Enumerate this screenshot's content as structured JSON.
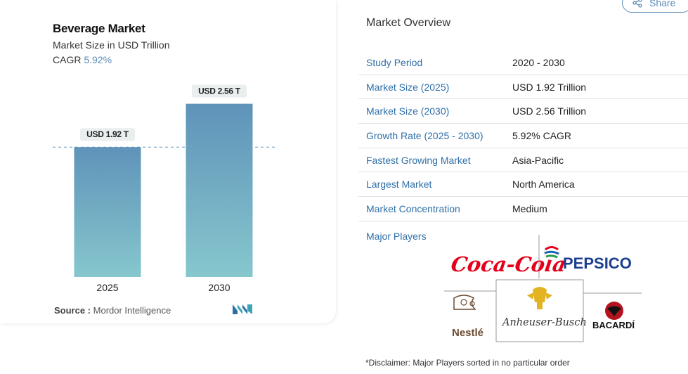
{
  "chart_data": {
    "type": "bar",
    "title": "Beverage Market",
    "subtitle": "Market Size in USD Trillion",
    "cagr_label": "CAGR",
    "cagr_value": "5.92%",
    "categories": [
      "2025",
      "2030"
    ],
    "values": [
      1.92,
      2.56
    ],
    "data_labels": [
      "USD 1.92 T",
      "USD 2.56 T"
    ],
    "ylim": [
      0,
      3.2
    ],
    "reference_line_value": 1.92,
    "grid": false,
    "bar_color_top": "#5f93b9",
    "bar_color_bottom": "#86c7cd"
  },
  "source": {
    "label": "Source :",
    "text": "Mordor Intelligence"
  },
  "share": {
    "label": "Share"
  },
  "overview": {
    "title": "Market Overview",
    "rows": [
      {
        "label": "Study Period",
        "value": "2020 - 2030"
      },
      {
        "label": "Market Size (2025)",
        "value": "USD 1.92 Trillion"
      },
      {
        "label": "Market Size (2030)",
        "value": "USD 2.56 Trillion"
      },
      {
        "label": "Growth Rate (2025 - 2030)",
        "value": "5.92% CAGR"
      },
      {
        "label": "Fastest Growing Market",
        "value": "Asia-Pacific"
      },
      {
        "label": "Largest Market",
        "value": "North America"
      },
      {
        "label": "Market Concentration",
        "value": "Medium"
      }
    ],
    "major_players_label": "Major Players",
    "players": [
      "Coca-Cola",
      "PEPSICO",
      "Nestlé",
      "Anheuser-Busch",
      "BACARDÍ"
    ],
    "disclaimer": "*Disclaimer: Major Players sorted in no particular order"
  },
  "colors": {
    "accent": "#2f6fa8",
    "cagr": "#5b8db8"
  }
}
